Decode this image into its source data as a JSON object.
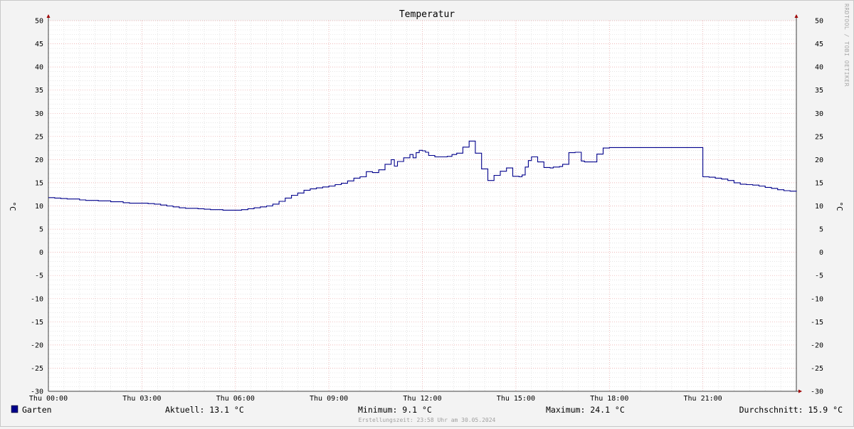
{
  "chart_data": {
    "type": "line",
    "title": "Temperatur",
    "ylabel": "°C",
    "ylabel_right": "°C",
    "ylim": [
      -30,
      50
    ],
    "yticks": [
      50,
      45,
      40,
      35,
      30,
      25,
      20,
      15,
      10,
      5,
      0,
      -5,
      -10,
      -15,
      -20,
      -25,
      -30
    ],
    "xlim": [
      0,
      24
    ],
    "xticks": [
      {
        "hour": 0,
        "label": "Thu 00:00"
      },
      {
        "hour": 3,
        "label": "Thu 03:00"
      },
      {
        "hour": 6,
        "label": "Thu 06:00"
      },
      {
        "hour": 9,
        "label": "Thu 09:00"
      },
      {
        "hour": 12,
        "label": "Thu 12:00"
      },
      {
        "hour": 15,
        "label": "Thu 15:00"
      },
      {
        "hour": 18,
        "label": "Thu 18:00"
      },
      {
        "hour": 21,
        "label": "Thu 21:00"
      }
    ],
    "grid": true,
    "series": [
      {
        "name": "Garten",
        "color": "#00008b",
        "x": [
          0.0,
          0.2,
          0.4,
          0.6,
          0.8,
          1.0,
          1.2,
          1.4,
          1.6,
          1.8,
          2.0,
          2.2,
          2.4,
          2.6,
          2.8,
          3.0,
          3.2,
          3.4,
          3.6,
          3.8,
          4.0,
          4.2,
          4.4,
          4.6,
          4.8,
          5.0,
          5.2,
          5.4,
          5.6,
          5.8,
          6.0,
          6.2,
          6.4,
          6.6,
          6.8,
          7.0,
          7.2,
          7.4,
          7.6,
          7.8,
          8.0,
          8.2,
          8.4,
          8.6,
          8.8,
          9.0,
          9.2,
          9.4,
          9.6,
          9.8,
          10.0,
          10.2,
          10.4,
          10.6,
          10.8,
          11.0,
          11.1,
          11.2,
          11.4,
          11.6,
          11.7,
          11.8,
          11.9,
          12.0,
          12.1,
          12.2,
          12.4,
          12.6,
          12.8,
          12.95,
          13.1,
          13.3,
          13.5,
          13.7,
          13.9,
          14.1,
          14.3,
          14.5,
          14.7,
          14.9,
          15.1,
          15.2,
          15.3,
          15.4,
          15.5,
          15.7,
          15.9,
          16.1,
          16.2,
          16.4,
          16.5,
          16.7,
          16.9,
          17.1,
          17.2,
          17.4,
          17.6,
          17.8,
          18.0,
          18.5,
          19.0,
          19.5,
          20.0,
          20.5,
          20.99,
          21.0,
          21.2,
          21.4,
          21.6,
          21.8,
          22.0,
          22.2,
          22.4,
          22.6,
          22.8,
          23.0,
          23.2,
          23.4,
          23.6,
          23.8,
          24.0
        ],
        "values": [
          11.8,
          11.7,
          11.6,
          11.5,
          11.5,
          11.3,
          11.2,
          11.2,
          11.1,
          11.1,
          10.9,
          10.9,
          10.7,
          10.6,
          10.6,
          10.6,
          10.5,
          10.4,
          10.2,
          10.0,
          9.8,
          9.6,
          9.5,
          9.5,
          9.4,
          9.3,
          9.2,
          9.2,
          9.1,
          9.1,
          9.1,
          9.2,
          9.4,
          9.6,
          9.8,
          10.0,
          10.4,
          11.0,
          11.7,
          12.3,
          12.8,
          13.4,
          13.7,
          13.9,
          14.1,
          14.3,
          14.6,
          14.9,
          15.4,
          16.0,
          16.3,
          17.4,
          17.2,
          17.8,
          19.0,
          20.0,
          18.6,
          19.6,
          20.4,
          21.1,
          20.4,
          21.5,
          22.0,
          21.9,
          21.6,
          20.9,
          20.6,
          20.6,
          20.7,
          21.1,
          21.4,
          22.7,
          24.0,
          21.4,
          18.0,
          15.5,
          16.6,
          17.5,
          18.2,
          16.4,
          16.3,
          16.7,
          18.4,
          19.8,
          20.6,
          19.5,
          18.3,
          18.2,
          18.4,
          18.5,
          19.0,
          21.5,
          21.6,
          19.7,
          19.5,
          19.5,
          21.2,
          22.5,
          22.6,
          22.6,
          22.6,
          22.6,
          22.6,
          22.6,
          22.6,
          16.3,
          16.2,
          16.0,
          15.8,
          15.5,
          15.0,
          14.7,
          14.6,
          14.5,
          14.3,
          14.0,
          13.8,
          13.5,
          13.3,
          13.2,
          13.1
        ]
      }
    ]
  },
  "watermark": "RRDTOOL / TOBI OETIKER",
  "legend": {
    "series_name": "Garten",
    "swatch_color": "#00008b",
    "current": "Aktuell: 13.1 °C",
    "minimum": "Minimum: 9.1 °C",
    "maximum": "Maximum: 24.1 °C",
    "average": "Durchschnitt: 15.9 °C"
  },
  "timestamp": "Erstellungszeit: 23:58 Uhr am 30.05.2024"
}
